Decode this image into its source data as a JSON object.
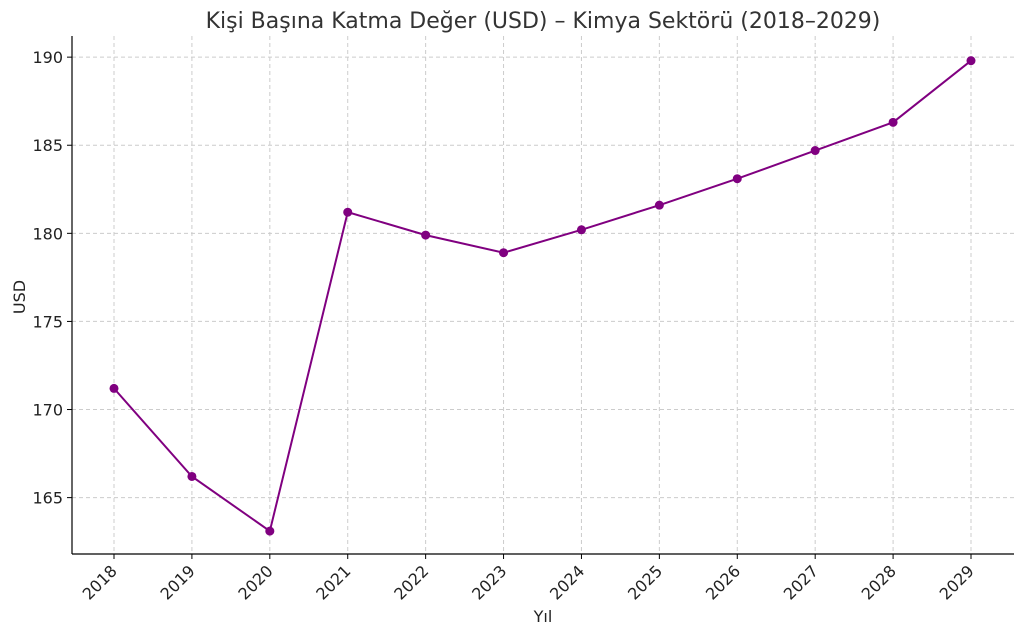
{
  "chart_data": {
    "type": "line",
    "title": "Kişi Başına Katma Değer (USD) – Kimya Sektörü (2018–2029)",
    "xlabel": "Yıl",
    "ylabel": "USD",
    "x": [
      "2018",
      "2019",
      "2020",
      "2021",
      "2022",
      "2023",
      "2024",
      "2025",
      "2026",
      "2027",
      "2028",
      "2029"
    ],
    "series": [
      {
        "values": [
          171.2,
          166.2,
          163.1,
          181.2,
          179.9,
          178.9,
          180.2,
          181.6,
          183.1,
          184.7,
          186.3,
          189.8
        ],
        "color": "#800080"
      }
    ],
    "ylim": [
      161.8,
      191.2
    ],
    "yticks": [
      165,
      170,
      175,
      180,
      185,
      190
    ],
    "grid": true,
    "legend": false
  }
}
